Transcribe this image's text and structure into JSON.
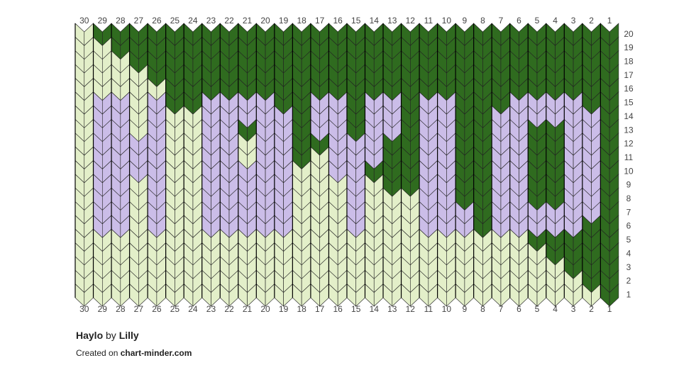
{
  "chart": {
    "columns": [
      30,
      29,
      28,
      27,
      26,
      25,
      24,
      23,
      22,
      21,
      20,
      19,
      18,
      17,
      16,
      15,
      14,
      13,
      12,
      11,
      10,
      9,
      8,
      7,
      6,
      5,
      4,
      3,
      2,
      1
    ],
    "rows": [
      20,
      19,
      18,
      17,
      16,
      15,
      14,
      13,
      12,
      11,
      10,
      9,
      8,
      7,
      6,
      5,
      4,
      3,
      2,
      1
    ],
    "palette": {
      "L": "#e3efc9",
      "D": "#2f6b1f",
      "P": "#cbbde8"
    },
    "stitches": [
      "LDDDDDDDDDDDDDDDDDDDDDDDDDDDDD",
      "LLDDDDDDDDDDDDDDDDDDDDDDDDDDDD",
      "LLLDDDDDDDDDDDDDDDDDDDDDDDDDDD",
      "LLLLDDDDDDDDDDDDDDDDDDDDDDDDDD",
      "LLLLLDDDDDDDDDDDDDDDDDDDDDDDDD",
      "LPPLPDDPPPPDDPPDPPDPPDDDPPPPDD",
      "LPPLPLLPPPPPDPPDPPDPPDDPPPPPPD",
      "LPPLPLLPPDPPDPPDPPDPPDDPPDDPPD",
      "LPPPPLLPPLPPDDPPPDDPPDDPPDDPPD",
      "LPPPPLLPPLPPDLPPPDDPPDDPPDDPPD",
      "LPPPPLLPPPPPLLPPDDDPPDDPPDDPPD",
      "LPPLPLLPPPPPLLLPLDDPPDDPPDDPPD",
      "LPPLPLLPPPPPLLLPLLLPPDDPPDDPPD",
      "LPPLPLLPPPPPLLLPLLLPPPDPPPPPPD",
      "LPPLPLLPPPPPLLLPLLLPPPDPPPPPDD",
      "LLLLLLLLLLLLLLLLLLLLLLLLLDDDDD",
      "LLLLLLLLLLLLLLLLLLLLLLLLLLDDDD",
      "LLLLLLLLLLLLLLLLLLLLLLLLLLLDDD",
      "LLLLLLLLLLLLLLLLLLLLLLLLLLLLDD",
      "LLLLLLLLLLLLLLLLLLLLLLLLLLLLLD"
    ]
  },
  "footer": {
    "title": "Haylo",
    "by": "by",
    "author": "Lilly",
    "created": "Created on",
    "site": "chart-minder.com"
  }
}
